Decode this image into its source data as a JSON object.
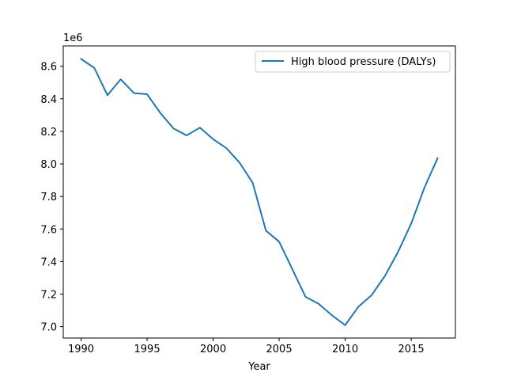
{
  "chart_data": {
    "type": "line",
    "title": "",
    "xlabel": "Year",
    "ylabel": "",
    "y_offset_label": "1e6",
    "x": [
      1990,
      1991,
      1992,
      1993,
      1994,
      1995,
      1996,
      1997,
      1998,
      1999,
      2000,
      2001,
      2002,
      2003,
      2004,
      2005,
      2006,
      2007,
      2008,
      2009,
      2010,
      2011,
      2012,
      2013,
      2014,
      2015,
      2016,
      2017
    ],
    "series": [
      {
        "name": "High blood pressure (DALYs)",
        "color": "#1f77b4",
        "values": [
          8645000,
          8590000,
          8422000,
          8520000,
          8435000,
          8428000,
          8313000,
          8218000,
          8175000,
          8223000,
          8152000,
          8097000,
          8008000,
          7883000,
          7590000,
          7522000,
          7353000,
          7183000,
          7140000,
          7070000,
          7009000,
          7122000,
          7193000,
          7310000,
          7458000,
          7633000,
          7853000,
          8035000
        ]
      }
    ],
    "xlim": [
      1988.65,
      2018.35
    ],
    "ylim": [
      6930000.0,
      8725000.0
    ],
    "x_ticks": [
      1990,
      1995,
      2000,
      2005,
      2010,
      2015
    ],
    "x_tick_labels": [
      "1990",
      "1995",
      "2000",
      "2005",
      "2010",
      "2015"
    ],
    "y_ticks": [
      7000000.0,
      7200000.0,
      7400000.0,
      7600000.0,
      7800000.0,
      8000000.0,
      8200000.0,
      8400000.0,
      8600000.0
    ],
    "y_tick_labels": [
      "7.0",
      "7.2",
      "7.4",
      "7.6",
      "7.8",
      "8.0",
      "8.2",
      "8.4",
      "8.6"
    ],
    "grid": false,
    "legend_position": "top-right"
  }
}
